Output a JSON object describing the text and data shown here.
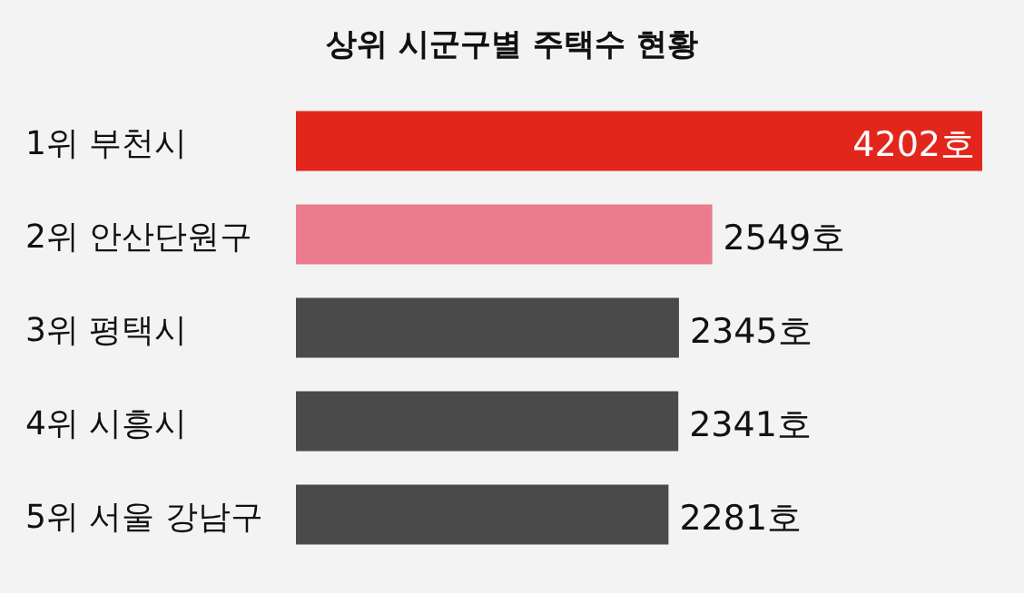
{
  "chart_data": {
    "type": "bar",
    "orientation": "horizontal",
    "title": "상위 시군구별 주택수 현황",
    "categories": [
      "1위 부천시",
      "2위 안산단원구",
      "3위 평택시",
      "4위 시흥시",
      "5위 서울 강남구"
    ],
    "values": [
      4202,
      2549,
      2345,
      2341,
      2281
    ],
    "colors": [
      "#e3261c",
      "#ec7b8e",
      "#4a4a4a",
      "#4a4a4a",
      "#4a4a4a"
    ],
    "value_labels": [
      "4202호",
      "2549호",
      "2345호",
      "2341호",
      "2281호"
    ]
  }
}
